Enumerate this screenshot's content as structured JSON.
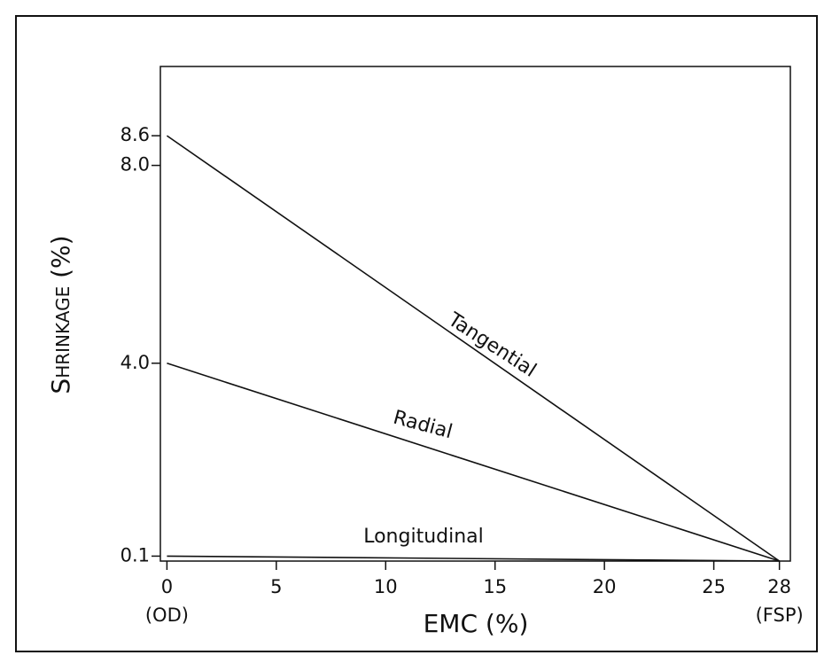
{
  "chart_data": {
    "type": "line",
    "ylabel": "Shrinkage (%)",
    "xlabel": "EMC (%)",
    "x": [
      0,
      28
    ],
    "series": [
      {
        "name": "Tangential",
        "color": "#111111",
        "values": [
          8.6,
          0
        ]
      },
      {
        "name": "Radial",
        "color": "#111111",
        "values": [
          4.0,
          0
        ]
      },
      {
        "name": "Longitudinal",
        "color": "#111111",
        "values": [
          0.1,
          0
        ]
      }
    ],
    "xlim": [
      -0.3,
      28.5
    ],
    "xticks": [
      0,
      5,
      10,
      15,
      20,
      25,
      28
    ],
    "ylim": [
      0,
      10
    ],
    "yticks": [
      {
        "value": 0.1,
        "label": "0.1"
      },
      {
        "value": 4.0,
        "label": "4.0"
      },
      {
        "value": 8.0,
        "label": "8.0"
      },
      {
        "value": 8.6,
        "label": "8.6"
      }
    ],
    "annotations": [
      "(OD)",
      "(FSP)"
    ]
  }
}
